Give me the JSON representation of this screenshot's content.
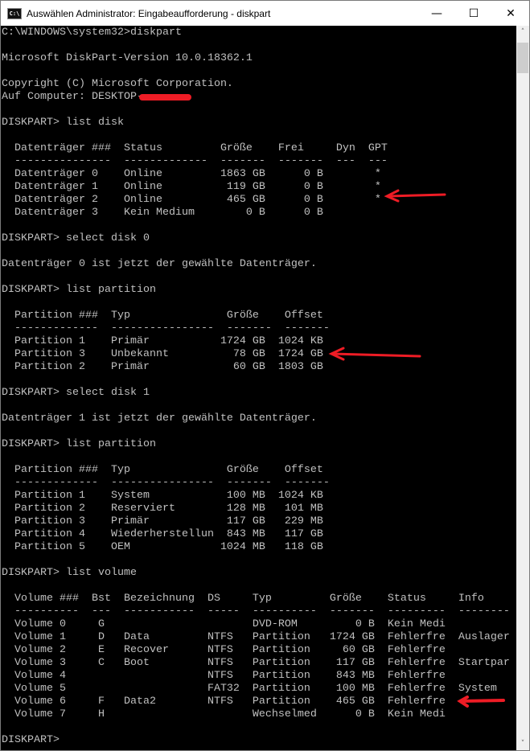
{
  "window": {
    "title": "Auswählen Administrator: Eingabeaufforderung - diskpart",
    "icon": "cmd-icon",
    "minimize": "—",
    "maximize": "☐",
    "close": "✕"
  },
  "console": {
    "lines": [
      "C:\\WINDOWS\\system32>diskpart",
      "",
      "Microsoft DiskPart-Version 10.0.18362.1",
      "",
      "Copyright (C) Microsoft Corporation.",
      "Auf Computer: DESKTOP-",
      "",
      "DISKPART> list disk",
      "",
      "  Datenträger ###  Status         Größe    Frei     Dyn  GPT",
      "  ---------------  -------------  -------  -------  ---  ---",
      "  Datenträger 0    Online         1863 GB      0 B        *",
      "  Datenträger 1    Online          119 GB      0 B        *",
      "  Datenträger 2    Online          465 GB      0 B        *",
      "  Datenträger 3    Kein Medium        0 B      0 B",
      "",
      "DISKPART> select disk 0",
      "",
      "Datenträger 0 ist jetzt der gewählte Datenträger.",
      "",
      "DISKPART> list partition",
      "",
      "  Partition ###  Typ               Größe    Offset",
      "  -------------  ----------------  -------  -------",
      "  Partition 1    Primär           1724 GB  1024 KB",
      "  Partition 3    Unbekannt          78 GB  1724 GB",
      "  Partition 2    Primär             60 GB  1803 GB",
      "",
      "DISKPART> select disk 1",
      "",
      "Datenträger 1 ist jetzt der gewählte Datenträger.",
      "",
      "DISKPART> list partition",
      "",
      "  Partition ###  Typ               Größe    Offset",
      "  -------------  ----------------  -------  -------",
      "  Partition 1    System            100 MB  1024 KB",
      "  Partition 2    Reserviert        128 MB   101 MB",
      "  Partition 3    Primär            117 GB   229 MB",
      "  Partition 4    Wiederherstellun  843 MB   117 GB",
      "  Partition 5    OEM              1024 MB   118 GB",
      "",
      "DISKPART> list volume",
      "",
      "  Volume ###  Bst  Bezeichnung  DS     Typ         Größe    Status     Info",
      "  ----------  ---  -----------  -----  ----------  -------  ---------  --------",
      "  Volume 0     G                       DVD-ROM         0 B  Kein Medi",
      "  Volume 1     D   Data         NTFS   Partition   1724 GB  Fehlerfre  Auslager",
      "  Volume 2     E   Recover      NTFS   Partition     60 GB  Fehlerfre",
      "  Volume 3     C   Boot         NTFS   Partition    117 GB  Fehlerfre  Startpar",
      "  Volume 4                      NTFS   Partition    843 MB  Fehlerfre",
      "  Volume 5                      FAT32  Partition    100 MB  Fehlerfre  System",
      "  Volume 6     F   Data2        NTFS   Partition    465 GB  Fehlerfre",
      "  Volume 7     H                       Wechselmed      0 B  Kein Medi",
      "",
      "DISKPART>"
    ],
    "text_color": "#c0c0c0",
    "background": "#000000"
  },
  "annotations": {
    "color": "#ee1c25",
    "redaction": "redacted-computer-name",
    "arrows": [
      "arrow-disk-2",
      "arrow-partition-3",
      "arrow-volume-6"
    ]
  },
  "scrollbar": {
    "up": "˄",
    "down": "˅"
  }
}
